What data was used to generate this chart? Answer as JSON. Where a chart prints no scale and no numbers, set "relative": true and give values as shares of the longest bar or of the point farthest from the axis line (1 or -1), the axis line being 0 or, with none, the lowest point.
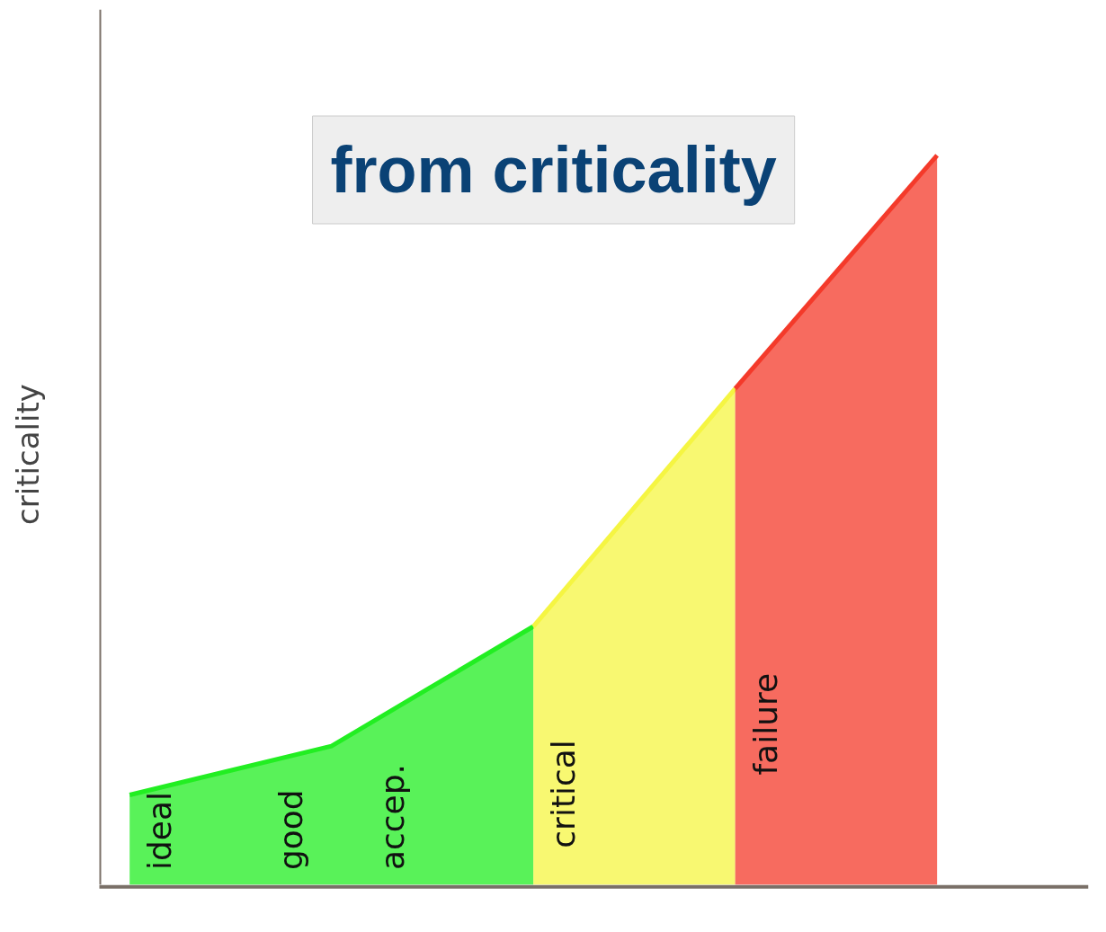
{
  "chart_data": {
    "type": "area",
    "relative": true,
    "title": "from criticality",
    "ylabel": "criticality",
    "grid": false,
    "categories": [
      null,
      null,
      null,
      null,
      null
    ],
    "series": [
      {
        "color": "#22ee22",
        "values": [
          0.123,
          0.19,
          0.354,
          null,
          null
        ]
      },
      {
        "color": "#f5f542",
        "values": [
          null,
          null,
          0.354,
          0.68,
          null
        ]
      },
      {
        "color": "#f43a2a",
        "values": [
          null,
          null,
          null,
          0.68,
          1.0
        ]
      }
    ],
    "annotations": [
      "ideal",
      "good",
      "accep.",
      "critical",
      "failure"
    ]
  }
}
